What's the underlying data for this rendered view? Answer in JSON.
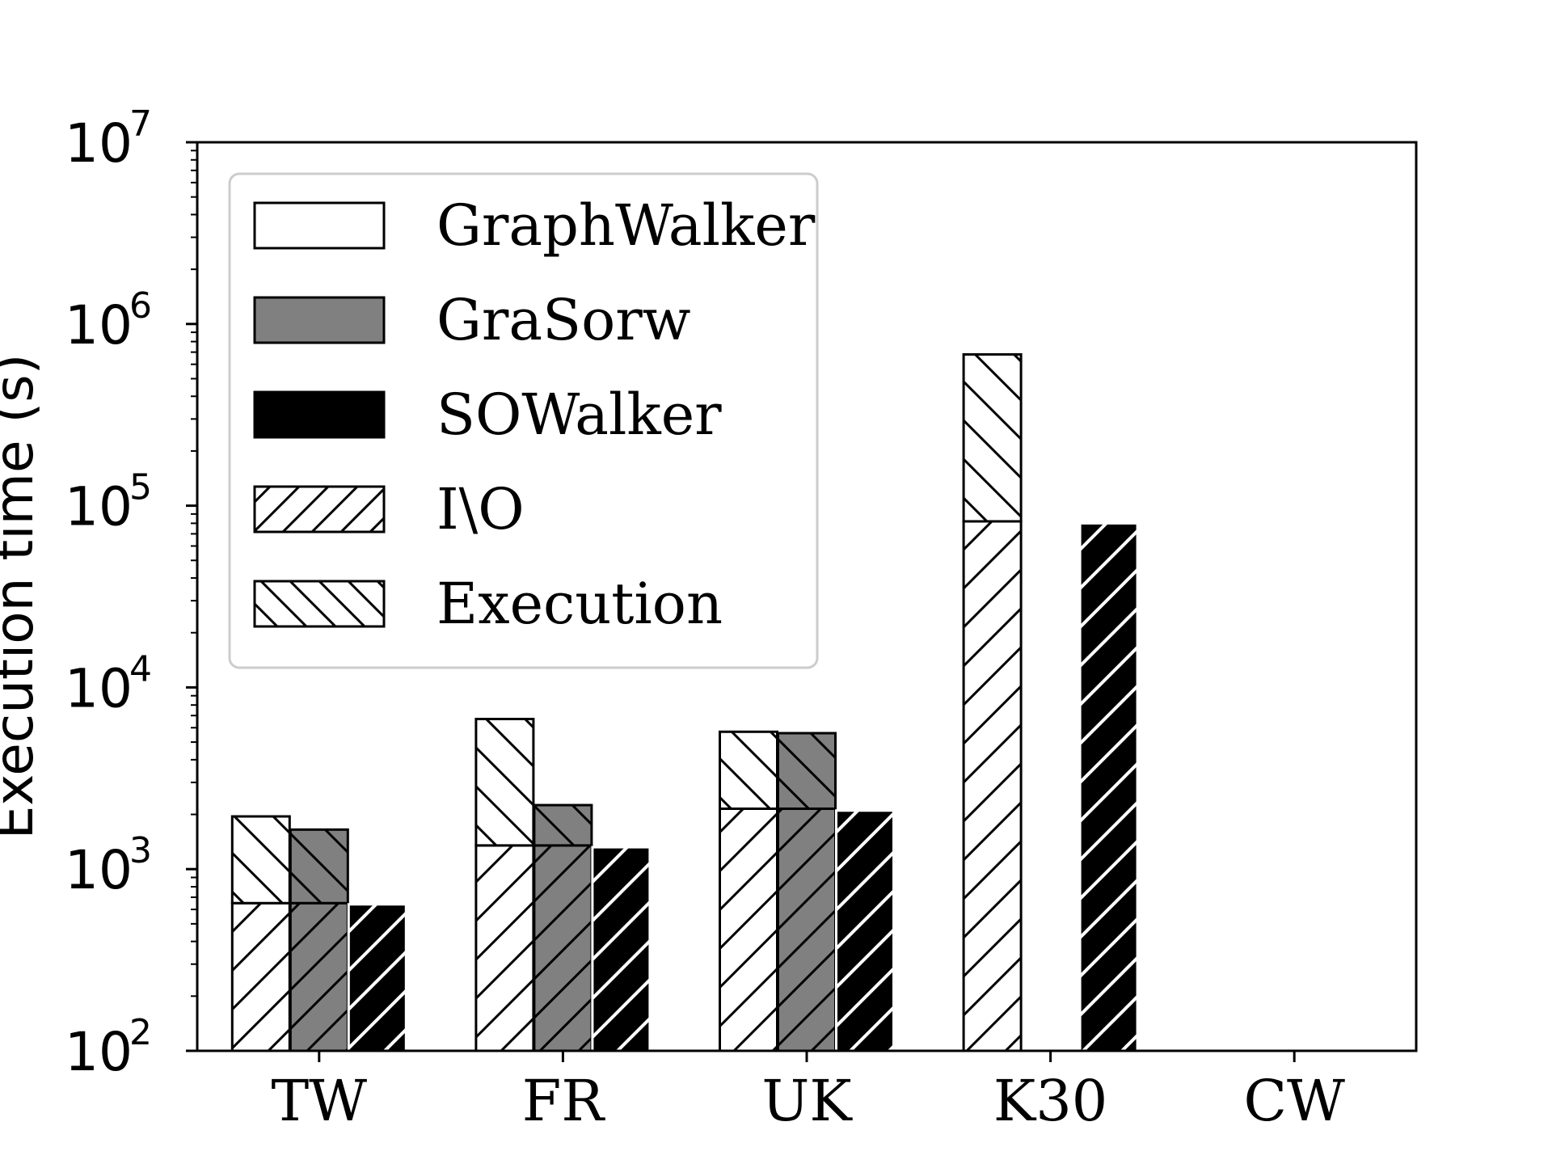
{
  "chart_data": {
    "type": "bar",
    "stacked": true,
    "y_scale": "log",
    "ylim": [
      100,
      10000000
    ],
    "ylabel": "Execution time (s)",
    "xlabel": "",
    "grid": false,
    "legend_position": "top-left",
    "categories": [
      "TW",
      "FR",
      "UK",
      "K30",
      "CW"
    ],
    "y_ticks": [
      {
        "base": "10",
        "exp": "2",
        "value": 100
      },
      {
        "base": "10",
        "exp": "3",
        "value": 1000
      },
      {
        "base": "10",
        "exp": "4",
        "value": 10000
      },
      {
        "base": "10",
        "exp": "5",
        "value": 100000
      },
      {
        "base": "10",
        "exp": "6",
        "value": 1000000
      },
      {
        "base": "10",
        "exp": "7",
        "value": 10000000
      }
    ],
    "series": [
      {
        "name": "GraphWalker",
        "color": "#ffffff",
        "io": [
          650,
          1350,
          2150,
          82000,
          null
        ],
        "total": [
          1950,
          6700,
          5700,
          680000,
          null
        ]
      },
      {
        "name": "GraSorw",
        "color": "#808080",
        "io": [
          650,
          1350,
          2150,
          null,
          null
        ],
        "total": [
          1650,
          2250,
          5600,
          null,
          null
        ]
      },
      {
        "name": "SOWalker",
        "color": "#000000",
        "io": [
          640,
          1320,
          2100,
          80000,
          null
        ],
        "total": [
          640,
          1320,
          2100,
          80000,
          null
        ]
      }
    ],
    "legend": [
      {
        "label": "GraphWalker",
        "fill": "#ffffff",
        "hatch": "none"
      },
      {
        "label": "GraSorw",
        "fill": "#808080",
        "hatch": "none"
      },
      {
        "label": "SOWalker",
        "fill": "#000000",
        "hatch": "none"
      },
      {
        "label": "I\\O",
        "fill": "#ffffff",
        "hatch": "forward"
      },
      {
        "label": "Execution",
        "fill": "#ffffff",
        "hatch": "back"
      }
    ]
  }
}
